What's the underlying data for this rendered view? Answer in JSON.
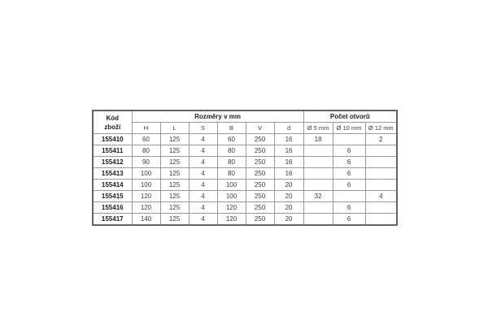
{
  "table": {
    "header": {
      "code_line1": "Kód",
      "code_line2": "zboží",
      "group_dimensions": "Rozměry v mm",
      "group_holes": "Počet otvorů",
      "dimension_cols": [
        "H",
        "L",
        "S",
        "B",
        "V",
        "d"
      ],
      "hole_cols": [
        "Ø 5 mm",
        "Ø 10 mm",
        "Ø 12 mm"
      ]
    },
    "rows": [
      {
        "code": "155410",
        "values": [
          "60",
          "125",
          "4",
          "60",
          "250",
          "16",
          "18",
          "",
          "2"
        ]
      },
      {
        "code": "155411",
        "values": [
          "80",
          "125",
          "4",
          "80",
          "250",
          "16",
          "",
          "6",
          ""
        ]
      },
      {
        "code": "155412",
        "values": [
          "90",
          "125",
          "4",
          "80",
          "250",
          "16",
          "",
          "6",
          ""
        ]
      },
      {
        "code": "155413",
        "values": [
          "100",
          "125",
          "4",
          "80",
          "250",
          "16",
          "",
          "6",
          ""
        ]
      },
      {
        "code": "155414",
        "values": [
          "100",
          "125",
          "4",
          "100",
          "250",
          "20",
          "",
          "6",
          ""
        ]
      },
      {
        "code": "155415",
        "values": [
          "120",
          "125",
          "4",
          "100",
          "250",
          "20",
          "32",
          "",
          "4"
        ]
      },
      {
        "code": "155416",
        "values": [
          "120",
          "125",
          "4",
          "120",
          "250",
          "20",
          "",
          "6",
          ""
        ]
      },
      {
        "code": "155417",
        "values": [
          "140",
          "125",
          "4",
          "120",
          "250",
          "20",
          "",
          "6",
          ""
        ]
      }
    ]
  },
  "chart_data": {
    "type": "table",
    "title": "",
    "columns": [
      "Kód zboží",
      "H",
      "L",
      "S",
      "B",
      "V",
      "d",
      "Ø 5 mm",
      "Ø 10 mm",
      "Ø 12 mm"
    ],
    "column_groups": [
      {
        "label": "Kód zboží",
        "span": 1
      },
      {
        "label": "Rozměry v mm",
        "span": 6
      },
      {
        "label": "Počet otvorů",
        "span": 3
      }
    ],
    "rows": [
      [
        "155410",
        60,
        125,
        4,
        60,
        250,
        16,
        18,
        null,
        2
      ],
      [
        "155411",
        80,
        125,
        4,
        80,
        250,
        16,
        null,
        6,
        null
      ],
      [
        "155412",
        90,
        125,
        4,
        80,
        250,
        16,
        null,
        6,
        null
      ],
      [
        "155413",
        100,
        125,
        4,
        80,
        250,
        16,
        null,
        6,
        null
      ],
      [
        "155414",
        100,
        125,
        4,
        100,
        250,
        20,
        null,
        6,
        null
      ],
      [
        "155415",
        120,
        125,
        4,
        100,
        250,
        20,
        32,
        null,
        4
      ],
      [
        "155416",
        120,
        125,
        4,
        120,
        250,
        20,
        null,
        6,
        null
      ],
      [
        "155417",
        140,
        125,
        4,
        120,
        250,
        20,
        null,
        6,
        null
      ]
    ]
  },
  "colors": {
    "grid_line": "#9a9a9a",
    "outer_border": "#646464",
    "header_text": "#1d1d1d",
    "value_text": "#3d3d3d",
    "background": "#ffffff"
  }
}
